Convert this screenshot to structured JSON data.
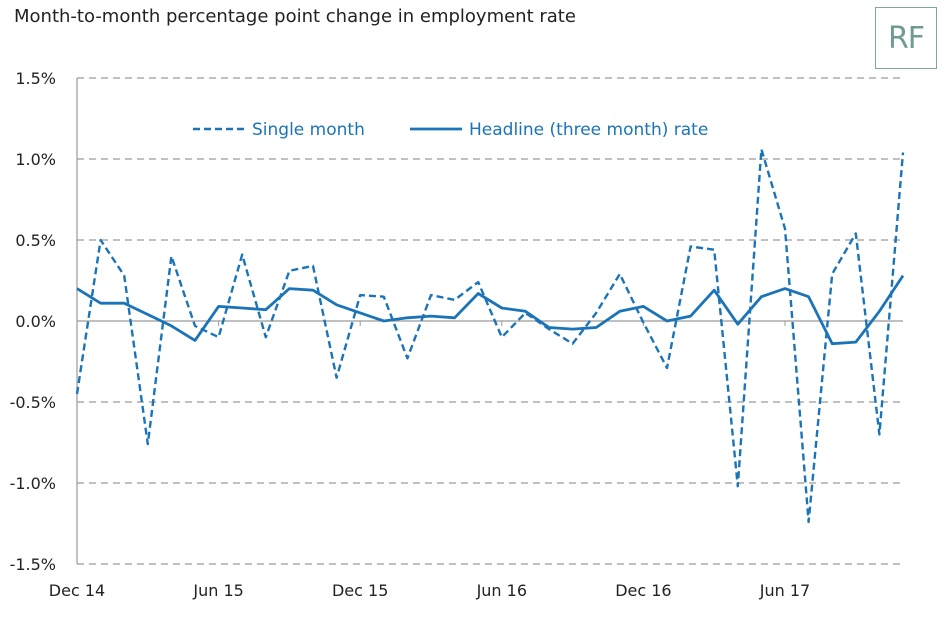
{
  "header": {
    "title": "Month-to-month percentage point change in employment rate",
    "logo_text": "RF"
  },
  "colors": {
    "series": "#1b74b8",
    "grid": "#9a9a9a",
    "axis": "#9a9a9a",
    "logo": "#6f9b93"
  },
  "chart_data": {
    "type": "line",
    "x_tick_labels": [
      "Dec 14",
      "Jun 15",
      "Dec 15",
      "Jun 16",
      "Dec 16",
      "Jun 17"
    ],
    "x_tick_index": [
      0,
      6,
      12,
      18,
      24,
      30
    ],
    "y_ticks": [
      1.5,
      1.0,
      0.5,
      0.0,
      -0.5,
      -1.0,
      -1.5
    ],
    "y_tick_labels": [
      "1.5%",
      "1.0%",
      "0.5%",
      "0.0%",
      "-0.5%",
      "-1.0%",
      "-1.5%"
    ],
    "ylim": [
      -1.5,
      1.5
    ],
    "grid": true,
    "legend_position": "top",
    "series": [
      {
        "name": "Single month",
        "style": "dashed",
        "values": [
          -0.45,
          0.5,
          0.28,
          -0.76,
          0.4,
          -0.03,
          -0.1,
          0.41,
          -0.1,
          0.31,
          0.34,
          -0.35,
          0.16,
          0.15,
          -0.23,
          0.16,
          0.13,
          0.24,
          -0.1,
          0.05,
          -0.05,
          -0.14,
          0.05,
          0.29,
          -0.01,
          -0.29,
          0.46,
          0.44,
          -1.02,
          1.06,
          0.57,
          -1.24,
          0.29,
          0.54,
          -0.7,
          1.04
        ]
      },
      {
        "name": "Headline (three month) rate",
        "style": "solid",
        "values": [
          0.2,
          0.11,
          0.11,
          0.04,
          -0.03,
          -0.12,
          0.09,
          0.08,
          0.07,
          0.2,
          0.19,
          0.1,
          0.05,
          0.0,
          0.02,
          0.03,
          0.02,
          0.17,
          0.08,
          0.06,
          -0.04,
          -0.05,
          -0.04,
          0.06,
          0.09,
          0.0,
          0.03,
          0.19,
          -0.02,
          0.15,
          0.2,
          0.15,
          -0.14,
          -0.13,
          0.06,
          0.28
        ]
      }
    ]
  }
}
